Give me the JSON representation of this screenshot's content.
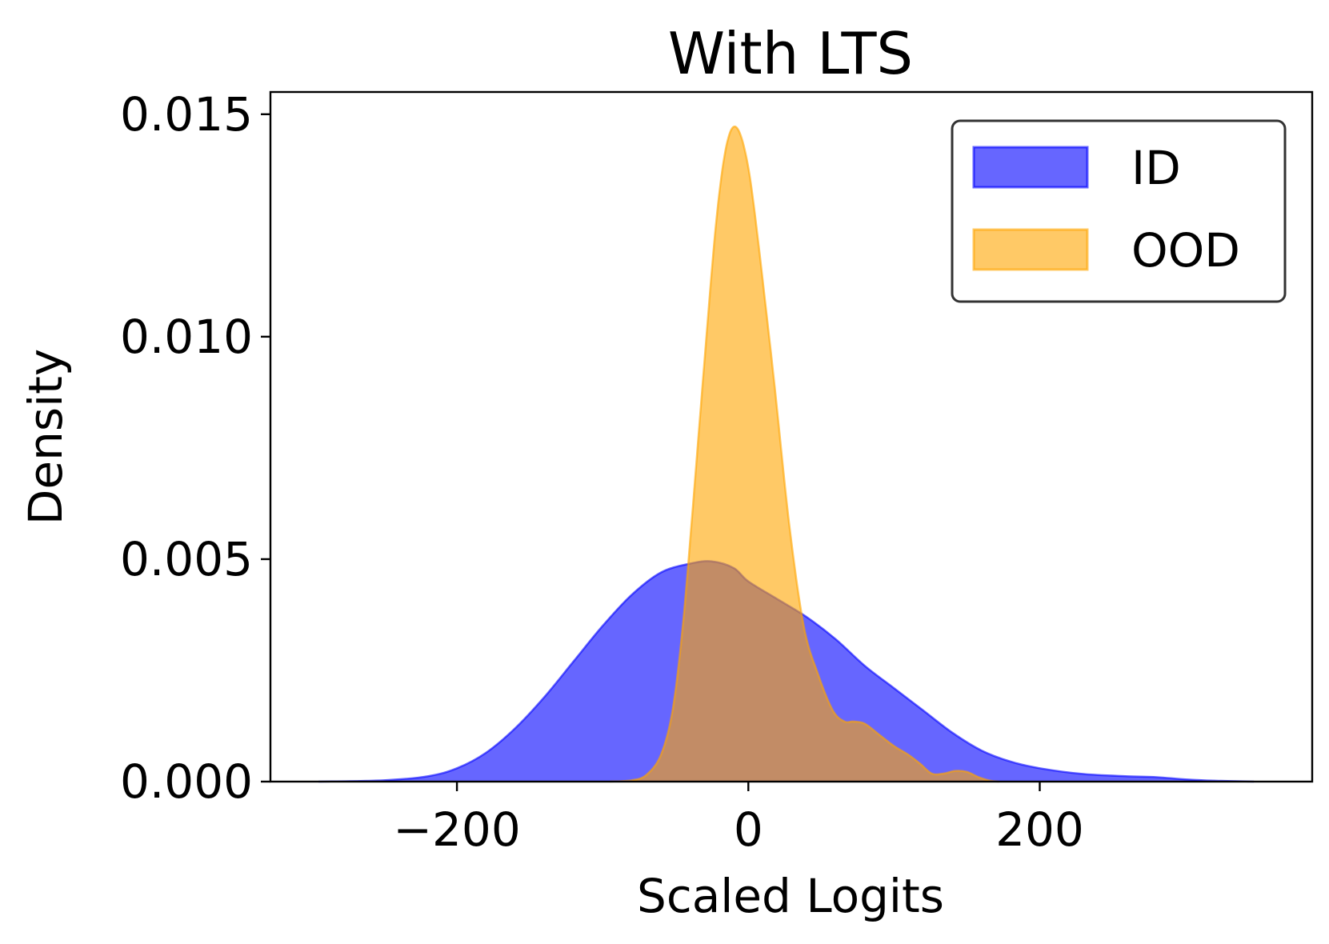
{
  "chart_data": {
    "type": "area",
    "title": "With LTS",
    "xlabel": "Scaled Logits",
    "ylabel": "Density",
    "xlim": [
      -328,
      387
    ],
    "ylim": [
      0,
      0.0155
    ],
    "xticks": [
      -200,
      0,
      200
    ],
    "xtick_labels": [
      "−200",
      "0",
      "200"
    ],
    "yticks": [
      0,
      0.005,
      0.01,
      0.015
    ],
    "ytick_labels": [
      "0.000",
      "0.005",
      "0.010",
      "0.015"
    ],
    "grid": false,
    "legend": {
      "position": "top-right"
    },
    "series": [
      {
        "name": "ID",
        "color": "#0000ff",
        "alpha": 0.6,
        "points": [
          [
            -295,
            0.0
          ],
          [
            -250,
            3e-05
          ],
          [
            -220,
            0.00012
          ],
          [
            -200,
            0.0003
          ],
          [
            -180,
            0.00065
          ],
          [
            -160,
            0.0012
          ],
          [
            -140,
            0.0019
          ],
          [
            -120,
            0.0027
          ],
          [
            -100,
            0.0035
          ],
          [
            -80,
            0.0042
          ],
          [
            -60,
            0.0047
          ],
          [
            -40,
            0.0049
          ],
          [
            -25,
            0.00495
          ],
          [
            -10,
            0.0048
          ],
          [
            0,
            0.0045
          ],
          [
            20,
            0.0041
          ],
          [
            40,
            0.0037
          ],
          [
            60,
            0.0032
          ],
          [
            80,
            0.0026
          ],
          [
            100,
            0.0021
          ],
          [
            120,
            0.0016
          ],
          [
            140,
            0.0011
          ],
          [
            160,
            0.0007
          ],
          [
            180,
            0.00045
          ],
          [
            200,
            0.0003
          ],
          [
            230,
            0.00017
          ],
          [
            260,
            0.00012
          ],
          [
            280,
            0.0001
          ],
          [
            300,
            5e-05
          ],
          [
            320,
            2e-05
          ],
          [
            347,
            0.0
          ]
        ]
      },
      {
        "name": "OOD",
        "color": "#ffa500",
        "alpha": 0.6,
        "points": [
          [
            -95,
            0.0
          ],
          [
            -80,
            3e-05
          ],
          [
            -70,
            0.00015
          ],
          [
            -60,
            0.0006
          ],
          [
            -52,
            0.0016
          ],
          [
            -45,
            0.0035
          ],
          [
            -38,
            0.0062
          ],
          [
            -30,
            0.0095
          ],
          [
            -22,
            0.0126
          ],
          [
            -15,
            0.0143
          ],
          [
            -8,
            0.0147
          ],
          [
            0,
            0.0138
          ],
          [
            8,
            0.0118
          ],
          [
            18,
            0.0089
          ],
          [
            28,
            0.0058
          ],
          [
            38,
            0.0035
          ],
          [
            48,
            0.0024
          ],
          [
            58,
            0.0016
          ],
          [
            66,
            0.00135
          ],
          [
            72,
            0.00135
          ],
          [
            80,
            0.0013
          ],
          [
            90,
            0.00105
          ],
          [
            100,
            0.0008
          ],
          [
            110,
            0.0006
          ],
          [
            118,
            0.0004
          ],
          [
            126,
            0.00018
          ],
          [
            134,
            0.00018
          ],
          [
            142,
            0.00024
          ],
          [
            150,
            0.00022
          ],
          [
            158,
            0.0001
          ],
          [
            166,
            2e-05
          ],
          [
            172,
            0.0
          ]
        ]
      }
    ]
  }
}
